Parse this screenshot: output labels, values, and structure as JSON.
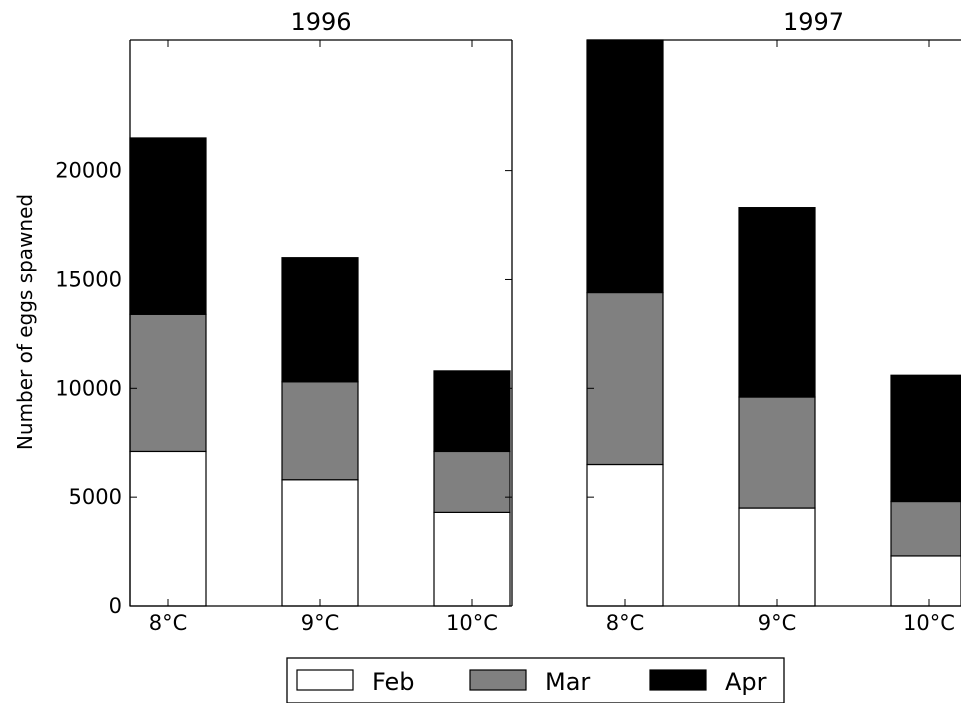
{
  "chart_data": {
    "type": "bar",
    "stacked": true,
    "ylabel": "Number of eggs spawned",
    "ylim": [
      0,
      26000
    ],
    "yticks": [
      0,
      5000,
      10000,
      15000,
      20000
    ],
    "categories": [
      "8°C",
      "9°C",
      "10°C"
    ],
    "legend": {
      "placement": "bottom-center",
      "entries": [
        "Feb",
        "Mar",
        "Apr"
      ]
    },
    "colors": {
      "Feb": "#ffffff",
      "Mar": "#808080",
      "Apr": "#000000"
    },
    "panels": [
      {
        "title": "1996",
        "series": [
          {
            "name": "Feb",
            "values": [
              7100,
              5800,
              4300
            ]
          },
          {
            "name": "Mar",
            "values": [
              6300,
              4500,
              2800
            ]
          },
          {
            "name": "Apr",
            "values": [
              8100,
              5700,
              3700
            ]
          }
        ]
      },
      {
        "title": "1997",
        "series": [
          {
            "name": "Feb",
            "values": [
              6500,
              4500,
              2300
            ]
          },
          {
            "name": "Mar",
            "values": [
              7900,
              5100,
              2500
            ]
          },
          {
            "name": "Apr",
            "values": [
              11600,
              8700,
              5800
            ]
          }
        ]
      }
    ]
  }
}
